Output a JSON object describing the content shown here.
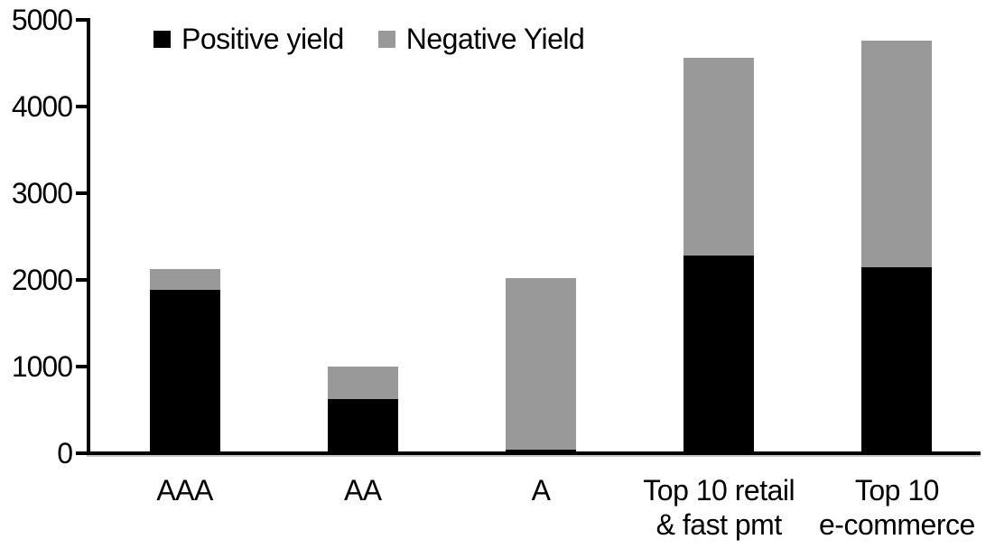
{
  "chart_data": {
    "type": "bar",
    "stacked": true,
    "title": "",
    "xlabel": "",
    "ylabel": "",
    "categories": [
      "AAA",
      "AA",
      "A",
      "Top 10 retail\n& fast pmt",
      "Top 10\ne-commerce"
    ],
    "series": [
      {
        "name": "Positive yield",
        "color": "#000000",
        "values": [
          1890,
          620,
          45,
          2285,
          2150
        ]
      },
      {
        "name": "Negative Yield",
        "color": "#999999",
        "values": [
          230,
          380,
          1980,
          2275,
          2610
        ]
      }
    ],
    "totals": [
      2120,
      1000,
      2025,
      4560,
      4760
    ],
    "ylim": [
      0,
      5000
    ],
    "y_ticks": [
      0,
      1000,
      2000,
      3000,
      4000,
      5000
    ],
    "grid": false,
    "legend_position": "top-inside"
  },
  "colors": {
    "background": "#ffffff",
    "axis": "#000000",
    "text": "#000000",
    "positive": "#000000",
    "negative": "#999999"
  }
}
